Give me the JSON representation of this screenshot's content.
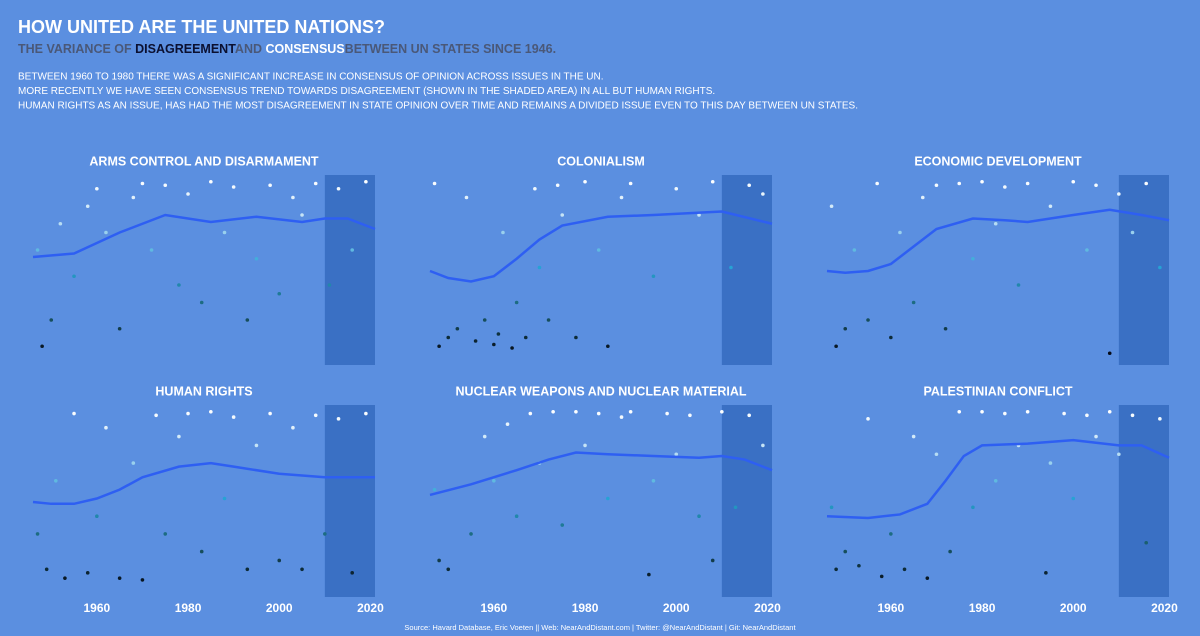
{
  "title": "HOW UNITED ARE THE UNITED NATIONS?",
  "subtitle": [
    {
      "text": "THE VARIANCE OF ",
      "color": "#4a5878"
    },
    {
      "text": "DISAGREEMENT",
      "color": "#0b1030"
    },
    {
      "text": "AND ",
      "color": "#4a5878"
    },
    {
      "text": "CONSENSUS",
      "color": "#ffffff"
    },
    {
      "text": "BETWEEN UN STATES SINCE 1946.",
      "color": "#4a5878"
    }
  ],
  "description": [
    "BETWEEN 1960 TO 1980 THERE WAS A SIGNIFICANT INCREASE IN CONSENSUS OF OPINION ACROSS ISSUES IN THE UN.",
    "MORE RECENTLY WE HAVE SEEN CONSENSUS TREND TOWARDS DISAGREEMENT (SHOWN IN THE SHADED AREA) IN ALL BUT HUMAN RIGHTS.",
    "HUMAN RIGHTS AS AN ISSUE, HAS HAD THE MOST DISAGREEMENT IN STATE OPINION OVER TIME AND REMAINS A DIVIDED ISSUE EVEN TO THIS DAY BETWEEN UN STATES."
  ],
  "source": "Source: Havard Database, Eric Voeten || Web: NearAndDistant.com | Twitter: @NearAndDistant | Git: NearAndDistant",
  "chart_data": [
    {
      "type": "scatter",
      "title": "ARMS CONTROL AND DISARMAMENT",
      "points": {
        "x": [
          1947,
          1948,
          1950,
          1952,
          1955,
          1958,
          1960,
          1962,
          1965,
          1968,
          1970,
          1972,
          1975,
          1978,
          1980,
          1983,
          1985,
          1988,
          1990,
          1993,
          1995,
          1998,
          2000,
          2003,
          2005,
          2008,
          2011,
          2013,
          2016,
          2019
        ],
        "values": [
          0.6,
          0.05,
          0.2,
          0.75,
          0.45,
          0.85,
          0.95,
          0.7,
          0.15,
          0.9,
          0.98,
          0.6,
          0.97,
          0.4,
          0.92,
          0.3,
          0.99,
          0.7,
          0.96,
          0.2,
          0.55,
          0.97,
          0.35,
          0.9,
          0.8,
          0.98,
          0.4,
          0.95,
          0.6,
          0.99
        ]
      },
      "trend": {
        "x": [
          1946,
          1955,
          1965,
          1975,
          1985,
          1995,
          2005,
          2010,
          2015,
          2021
        ],
        "values": [
          0.56,
          0.58,
          0.7,
          0.8,
          0.76,
          0.79,
          0.76,
          0.78,
          0.78,
          0.72
        ]
      }
    },
    {
      "type": "scatter",
      "title": "COLONIALISM",
      "points": {
        "x": [
          1947,
          1948,
          1950,
          1952,
          1954,
          1956,
          1958,
          1960,
          1961,
          1962,
          1964,
          1965,
          1967,
          1969,
          1970,
          1972,
          1974,
          1975,
          1978,
          1980,
          1983,
          1985,
          1988,
          1990,
          1995,
          2000,
          2005,
          2008,
          2012,
          2016,
          2019
        ],
        "values": [
          0.98,
          0.05,
          0.1,
          0.15,
          0.9,
          0.08,
          0.2,
          0.06,
          0.12,
          0.7,
          0.04,
          0.3,
          0.1,
          0.95,
          0.5,
          0.2,
          0.97,
          0.8,
          0.1,
          0.99,
          0.6,
          0.05,
          0.9,
          0.98,
          0.45,
          0.95,
          0.8,
          0.99,
          0.5,
          0.97,
          0.92
        ]
      },
      "trend": {
        "x": [
          1946,
          1950,
          1955,
          1960,
          1965,
          1970,
          1975,
          1985,
          1995,
          2010,
          2021
        ],
        "values": [
          0.48,
          0.44,
          0.42,
          0.45,
          0.55,
          0.66,
          0.74,
          0.79,
          0.8,
          0.82,
          0.75
        ]
      }
    },
    {
      "type": "scatter",
      "title": "ECONOMIC DEVELOPMENT",
      "points": {
        "x": [
          1947,
          1948,
          1950,
          1952,
          1955,
          1957,
          1960,
          1962,
          1965,
          1967,
          1970,
          1972,
          1975,
          1978,
          1980,
          1983,
          1985,
          1988,
          1990,
          1995,
          2000,
          2003,
          2005,
          2008,
          2010,
          2013,
          2016,
          2019
        ],
        "values": [
          0.85,
          0.05,
          0.15,
          0.6,
          0.2,
          0.98,
          0.1,
          0.7,
          0.3,
          0.9,
          0.97,
          0.15,
          0.98,
          0.55,
          0.99,
          0.75,
          0.96,
          0.4,
          0.98,
          0.85,
          0.99,
          0.6,
          0.97,
          0.01,
          0.92,
          0.7,
          0.98,
          0.5
        ]
      },
      "trend": {
        "x": [
          1946,
          1950,
          1955,
          1960,
          1965,
          1970,
          1978,
          1985,
          1990,
          2000,
          2008,
          2015,
          2021
        ],
        "values": [
          0.48,
          0.47,
          0.48,
          0.52,
          0.62,
          0.72,
          0.78,
          0.77,
          0.76,
          0.8,
          0.83,
          0.8,
          0.77
        ]
      }
    },
    {
      "type": "scatter",
      "title": "HUMAN RIGHTS",
      "points": {
        "x": [
          1947,
          1949,
          1951,
          1953,
          1955,
          1958,
          1960,
          1962,
          1965,
          1968,
          1970,
          1973,
          1975,
          1978,
          1980,
          1983,
          1985,
          1988,
          1990,
          1993,
          1995,
          1998,
          2000,
          2003,
          2005,
          2008,
          2010,
          2013,
          2016,
          2019
        ],
        "values": [
          0.3,
          0.1,
          0.6,
          0.05,
          0.98,
          0.08,
          0.4,
          0.9,
          0.05,
          0.7,
          0.04,
          0.97,
          0.3,
          0.85,
          0.98,
          0.2,
          0.99,
          0.5,
          0.96,
          0.1,
          0.8,
          0.98,
          0.15,
          0.9,
          0.1,
          0.97,
          0.3,
          0.95,
          0.08,
          0.98
        ]
      },
      "trend": {
        "x": [
          1946,
          1950,
          1955,
          1960,
          1965,
          1970,
          1978,
          1985,
          1990,
          2000,
          2010,
          2021
        ],
        "values": [
          0.48,
          0.47,
          0.47,
          0.5,
          0.55,
          0.62,
          0.68,
          0.7,
          0.68,
          0.64,
          0.62,
          0.62
        ]
      }
    },
    {
      "type": "scatter",
      "title": "NUCLEAR WEAPONS AND NUCLEAR MATERIAL",
      "points": {
        "x": [
          1947,
          1948,
          1950,
          1955,
          1958,
          1960,
          1963,
          1965,
          1968,
          1970,
          1973,
          1975,
          1978,
          1980,
          1983,
          1985,
          1988,
          1990,
          1994,
          1995,
          1998,
          2000,
          2003,
          2005,
          2008,
          2010,
          2013,
          2016,
          2019
        ],
        "values": [
          0.55,
          0.15,
          0.1,
          0.3,
          0.85,
          0.6,
          0.92,
          0.4,
          0.98,
          0.7,
          0.99,
          0.35,
          0.99,
          0.8,
          0.98,
          0.5,
          0.96,
          0.99,
          0.07,
          0.6,
          0.98,
          0.75,
          0.97,
          0.4,
          0.15,
          0.99,
          0.45,
          0.97,
          0.8
        ]
      },
      "trend": {
        "x": [
          1946,
          1955,
          1965,
          1972,
          1978,
          1985,
          1995,
          2005,
          2010,
          2015,
          2021
        ],
        "values": [
          0.52,
          0.58,
          0.66,
          0.72,
          0.76,
          0.75,
          0.74,
          0.73,
          0.74,
          0.72,
          0.66
        ]
      }
    },
    {
      "type": "scatter",
      "title": "PALESTINIAN CONFLICT",
      "points": {
        "x": [
          1947,
          1948,
          1950,
          1953,
          1955,
          1958,
          1960,
          1963,
          1965,
          1968,
          1970,
          1973,
          1975,
          1978,
          1980,
          1983,
          1985,
          1988,
          1990,
          1994,
          1995,
          1998,
          2000,
          2003,
          2005,
          2008,
          2010,
          2013,
          2016,
          2019
        ],
        "values": [
          0.45,
          0.1,
          0.2,
          0.12,
          0.95,
          0.06,
          0.3,
          0.1,
          0.85,
          0.05,
          0.75,
          0.2,
          0.99,
          0.45,
          0.99,
          0.6,
          0.98,
          0.8,
          0.99,
          0.08,
          0.7,
          0.98,
          0.5,
          0.97,
          0.85,
          0.99,
          0.75,
          0.97,
          0.25,
          0.95
        ]
      },
      "trend": {
        "x": [
          1946,
          1955,
          1962,
          1968,
          1972,
          1976,
          1980,
          1990,
          2000,
          2010,
          2015,
          2021
        ],
        "values": [
          0.4,
          0.39,
          0.41,
          0.47,
          0.6,
          0.74,
          0.8,
          0.81,
          0.83,
          0.8,
          0.8,
          0.73
        ]
      }
    }
  ],
  "axes": {
    "xlim": [
      1946,
      2021
    ],
    "ylim": [
      0,
      1
    ],
    "xticks": [
      1960,
      1980,
      2000,
      2020
    ],
    "shade": [
      2010,
      2021
    ],
    "shade_color": "#3a70c4",
    "trend_color": "#2e5ff2",
    "point_colors": [
      "#050814",
      "#1a5f6e",
      "#27a2d4",
      "#b6dcf3",
      "#ffffff"
    ]
  }
}
